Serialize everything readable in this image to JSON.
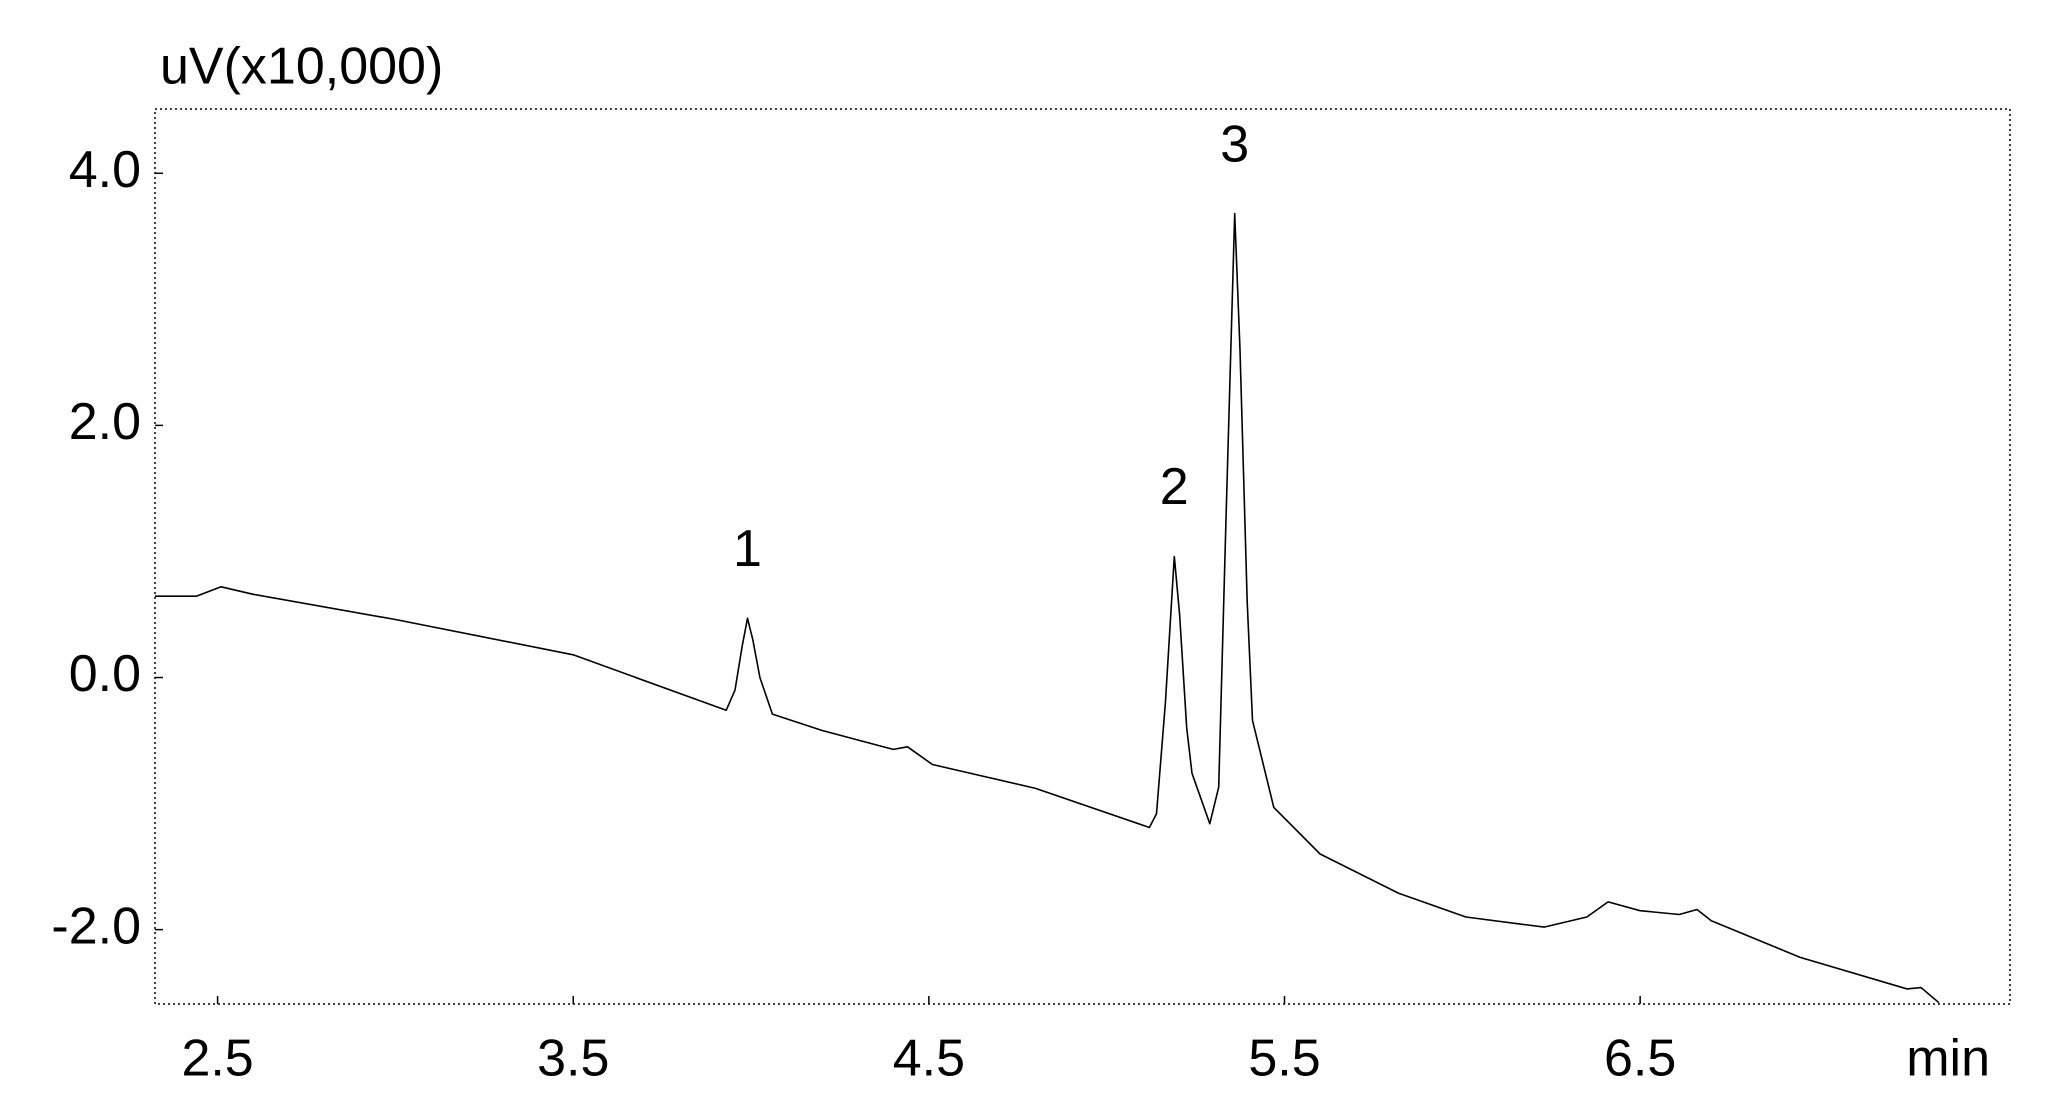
{
  "chart_data": {
    "type": "line",
    "ylabel": "uV(x10,000)",
    "xlabel": "min",
    "color": "#000000",
    "xlim": [
      2.324,
      7.54
    ],
    "ylim": [
      -2.59,
      4.51
    ],
    "xticks": [
      2.5,
      3.5,
      4.5,
      5.5,
      6.5
    ],
    "yticks": [
      {
        "value": 4,
        "label": "4.0"
      },
      {
        "value": 2,
        "label": "2.0"
      },
      {
        "value": 0,
        "label": "0.0"
      },
      {
        "value": -2,
        "label": "-2.0"
      }
    ],
    "x": [
      2.324,
      2.44,
      2.51,
      2.6,
      3.0,
      3.5,
      3.93,
      3.955,
      3.975,
      3.99,
      4.005,
      4.025,
      4.06,
      4.2,
      4.4,
      4.44,
      4.51,
      4.8,
      5.12,
      5.14,
      5.165,
      5.19,
      5.205,
      5.225,
      5.24,
      5.29,
      5.315,
      5.335,
      5.36,
      5.375,
      5.395,
      5.41,
      5.47,
      5.6,
      5.82,
      6.01,
      6.23,
      6.35,
      6.41,
      6.5,
      6.61,
      6.66,
      6.7,
      6.95,
      7.25,
      7.29,
      7.34
    ],
    "values": [
      0.645,
      0.645,
      0.72,
      0.66,
      0.46,
      0.18,
      -0.26,
      -0.1,
      0.25,
      0.47,
      0.3,
      0.0,
      -0.29,
      -0.42,
      -0.57,
      -0.55,
      -0.69,
      -0.88,
      -1.19,
      -1.08,
      -0.2,
      0.96,
      0.5,
      -0.4,
      -0.76,
      -1.16,
      -0.87,
      1.2,
      3.68,
      2.6,
      0.6,
      -0.34,
      -1.03,
      -1.4,
      -1.71,
      -1.9,
      -1.98,
      -1.9,
      -1.78,
      -1.85,
      -1.88,
      -1.84,
      -1.93,
      -2.22,
      -2.47,
      -2.46,
      -2.58
    ],
    "peak_labels": [
      {
        "label": "1",
        "x": 3.99,
        "y": 0.47
      },
      {
        "label": "2",
        "x": 5.19,
        "y": 0.96
      },
      {
        "label": "3",
        "x": 5.36,
        "y": 3.68
      }
    ]
  }
}
